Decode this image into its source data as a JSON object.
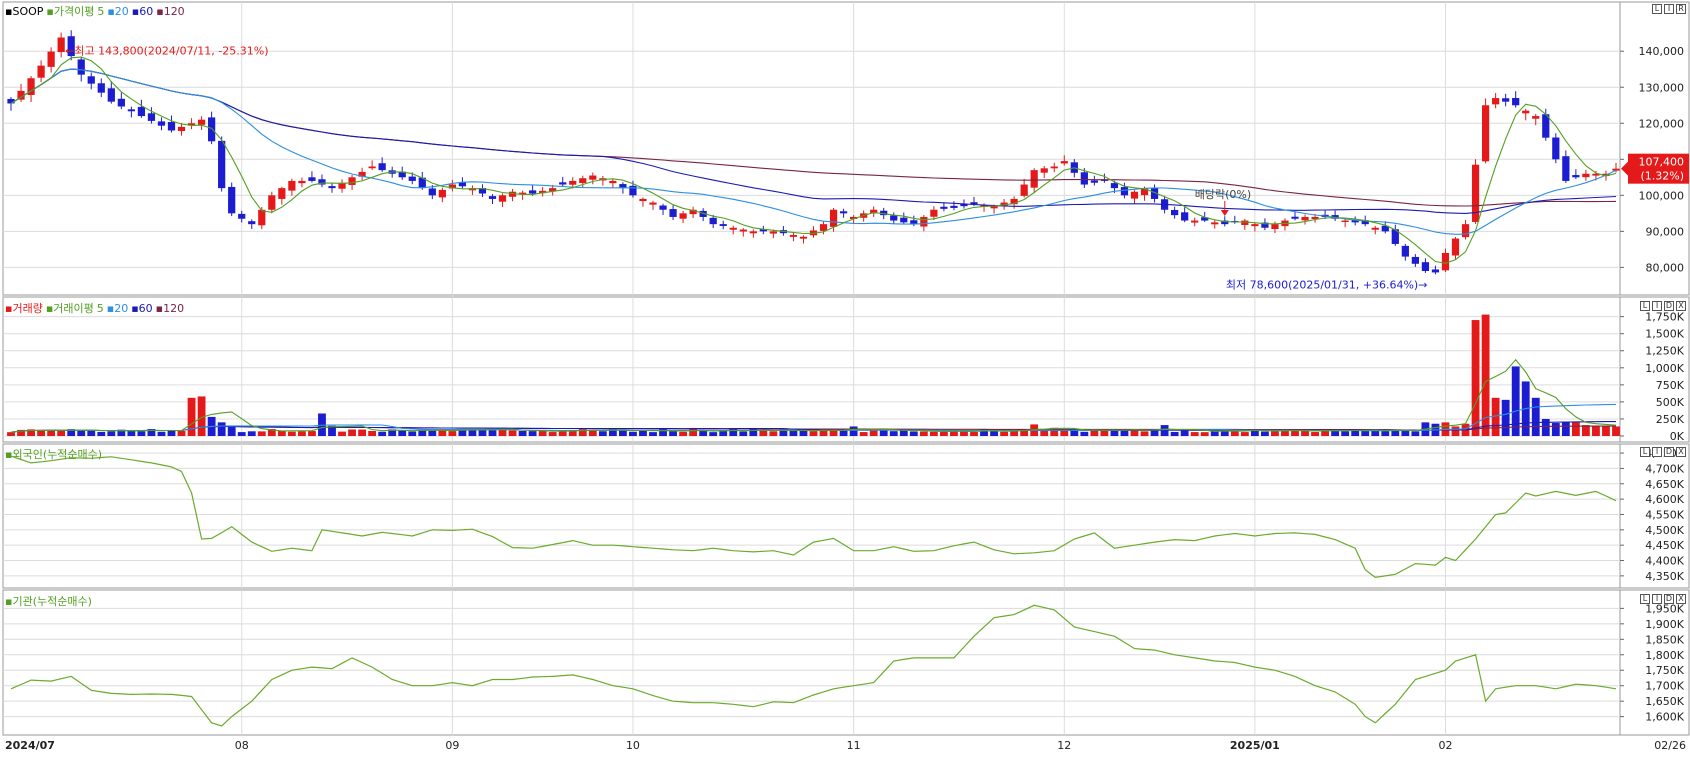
{
  "stock": {
    "name": "SOOP"
  },
  "colors": {
    "up": "#e41a1a",
    "down": "#1c1cd0",
    "ma5": "#52a022",
    "ma20": "#2d8fe0",
    "ma60": "#1b1bb4",
    "ma120": "#7a2448",
    "flow": "#6aab2c",
    "grid": "#dcdcdc",
    "frame": "#9a9a9a"
  },
  "panels": {
    "price": {
      "legend": [
        {
          "text": "▪SOOP",
          "color": "#000000"
        },
        {
          "text": "▪가격이평",
          "color": "#52a022"
        },
        {
          "text": "5",
          "color": "#52a022"
        },
        {
          "text": "▪20",
          "color": "#2d8fe0"
        },
        {
          "text": "▪60",
          "color": "#1b1bb4"
        },
        {
          "text": "▪120",
          "color": "#7a2448"
        }
      ],
      "controls": [
        "L",
        "I",
        "R"
      ]
    },
    "volume": {
      "legend": [
        {
          "text": "▪거래량",
          "color": "#e41a1a"
        },
        {
          "text": "▪거래이평",
          "color": "#52a022"
        },
        {
          "text": "5",
          "color": "#52a022"
        },
        {
          "text": "▪20",
          "color": "#2d8fe0"
        },
        {
          "text": "▪60",
          "color": "#1b1bb4"
        },
        {
          "text": "▪120",
          "color": "#7a2448"
        }
      ],
      "controls": [
        "L",
        "I",
        "D",
        "X"
      ]
    },
    "foreign": {
      "legend": [
        {
          "text": "▪외국인(누적순매수)",
          "color": "#52a022"
        }
      ],
      "controls": [
        "L",
        "I",
        "D",
        "X"
      ]
    },
    "institution": {
      "legend": [
        {
          "text": "▪기관(누적순매수)",
          "color": "#52a022"
        }
      ],
      "controls": [
        "L",
        "I",
        "D",
        "X"
      ]
    }
  },
  "chart_data": [
    {
      "type": "candlestick",
      "panel": "price",
      "ylim": [
        74000,
        152000
      ],
      "yticks": [
        80000,
        90000,
        100000,
        110000,
        120000,
        130000,
        140000
      ],
      "ytick_labels": [
        "80,000",
        "90,000",
        "100,000",
        "110,000",
        "120,000",
        "130,000",
        "140,000"
      ],
      "days": 161,
      "x_labels": [
        {
          "day": 0,
          "text": "2024/07"
        },
        {
          "day": 23,
          "text": "08"
        },
        {
          "day": 44,
          "text": "09"
        },
        {
          "day": 62,
          "text": "10"
        },
        {
          "day": 84,
          "text": "11"
        },
        {
          "day": 105,
          "text": "12"
        },
        {
          "day": 124,
          "text": "2025/01"
        },
        {
          "day": 143,
          "text": "02"
        },
        {
          "day": 160,
          "text": "02/26"
        }
      ],
      "anchors": [
        [
          0,
          125500
        ],
        [
          3,
          136000
        ],
        [
          5,
          143800
        ],
        [
          7,
          133500
        ],
        [
          10,
          126000
        ],
        [
          13,
          122000
        ],
        [
          16,
          118000
        ],
        [
          19,
          121000
        ],
        [
          20,
          115000
        ],
        [
          21,
          102000
        ],
        [
          22,
          95000
        ],
        [
          24,
          92000
        ],
        [
          26,
          100000
        ],
        [
          28,
          104000
        ],
        [
          30,
          104000
        ],
        [
          32,
          102000
        ],
        [
          34,
          105000
        ],
        [
          36,
          108000
        ],
        [
          38,
          106000
        ],
        [
          40,
          104000
        ],
        [
          42,
          100000
        ],
        [
          44,
          103000
        ],
        [
          46,
          102000
        ],
        [
          48,
          99000
        ],
        [
          50,
          101000
        ],
        [
          52,
          100500
        ],
        [
          54,
          102000
        ],
        [
          56,
          104000
        ],
        [
          58,
          105500
        ],
        [
          60,
          104000
        ],
        [
          62,
          100000
        ],
        [
          64,
          98000
        ],
        [
          66,
          94000
        ],
        [
          68,
          96000
        ],
        [
          70,
          92000
        ],
        [
          72,
          91000
        ],
        [
          74,
          90000
        ],
        [
          76,
          90000
        ],
        [
          78,
          89000
        ],
        [
          79,
          88500
        ],
        [
          81,
          92000
        ],
        [
          82,
          96000
        ],
        [
          84,
          94000
        ],
        [
          86,
          96000
        ],
        [
          88,
          93000
        ],
        [
          90,
          92000
        ],
        [
          92,
          96000
        ],
        [
          94,
          96500
        ],
        [
          96,
          97500
        ],
        [
          98,
          97000
        ],
        [
          100,
          99000
        ],
        [
          102,
          107000
        ],
        [
          104,
          108000
        ],
        [
          105,
          109500
        ],
        [
          107,
          103000
        ],
        [
          109,
          104000
        ],
        [
          111,
          100000
        ],
        [
          113,
          102000
        ],
        [
          115,
          96000
        ],
        [
          117,
          93000
        ],
        [
          119,
          93000
        ],
        [
          121,
          92000
        ],
        [
          123,
          93000
        ],
        [
          125,
          91000
        ],
        [
          127,
          93000
        ],
        [
          129,
          94000
        ],
        [
          131,
          94000
        ],
        [
          133,
          93000
        ],
        [
          135,
          92000
        ],
        [
          137,
          90000
        ],
        [
          139,
          83000
        ],
        [
          141,
          79000
        ],
        [
          142,
          78600
        ],
        [
          143,
          84000
        ],
        [
          145,
          92000
        ],
        [
          147,
          125000
        ],
        [
          148,
          127000
        ],
        [
          150,
          125000
        ],
        [
          152,
          122000
        ],
        [
          154,
          110000
        ],
        [
          155,
          104000
        ],
        [
          157,
          106000
        ],
        [
          159,
          106000
        ],
        [
          160,
          107400
        ]
      ],
      "highest": {
        "value": 143800,
        "label": "←최고 143,800(2024/07/11, -25.31%)"
      },
      "lowest": {
        "value": 78600,
        "label": "최저 78,600(2025/01/31, +36.64%)→"
      },
      "dividend": {
        "label": "배당락(0%)"
      },
      "last_price": {
        "value": 107400,
        "label": "107,400",
        "change": "(1.32%)"
      }
    },
    {
      "type": "bar",
      "panel": "volume",
      "ylim": [
        0,
        1950000
      ],
      "yticks": [
        0,
        250000,
        500000,
        750000,
        1000000,
        1250000,
        1500000,
        1750000
      ],
      "ytick_labels": [
        "0K",
        "250K",
        "500K",
        "750K",
        "1,000K",
        "1,250K",
        "1,500K",
        "1,750K"
      ],
      "base_volume": 80000,
      "spikes": [
        [
          18,
          560000
        ],
        [
          19,
          580000
        ],
        [
          20,
          280000
        ],
        [
          21,
          200000
        ],
        [
          22,
          150000
        ],
        [
          31,
          330000
        ],
        [
          32,
          150000
        ],
        [
          84,
          140000
        ],
        [
          102,
          170000
        ],
        [
          104,
          120000
        ],
        [
          115,
          160000
        ],
        [
          141,
          200000
        ],
        [
          142,
          180000
        ],
        [
          143,
          200000
        ],
        [
          144,
          140000
        ],
        [
          145,
          180000
        ],
        [
          146,
          1700000
        ],
        [
          147,
          1780000
        ],
        [
          148,
          560000
        ],
        [
          149,
          530000
        ],
        [
          150,
          1020000
        ],
        [
          151,
          800000
        ],
        [
          152,
          560000
        ],
        [
          153,
          250000
        ],
        [
          154,
          190000
        ],
        [
          155,
          200000
        ],
        [
          156,
          200000
        ],
        [
          157,
          160000
        ],
        [
          158,
          150000
        ],
        [
          159,
          140000
        ],
        [
          160,
          140000
        ]
      ]
    },
    {
      "type": "line",
      "panel": "foreign",
      "ylim": [
        4330,
        4760
      ],
      "yticks": [
        4350,
        4400,
        4450,
        4500,
        4550,
        4600,
        4650,
        4700,
        4750
      ],
      "ytick_labels": [
        "4,350K",
        "4,400K",
        "4,450K",
        "4,500K",
        "4,550K",
        "4,600K",
        "4,650K",
        "4,700K",
        "4,750K"
      ],
      "anchors": [
        [
          0,
          4740
        ],
        [
          2,
          4718
        ],
        [
          4,
          4725
        ],
        [
          6,
          4735
        ],
        [
          8,
          4733
        ],
        [
          10,
          4738
        ],
        [
          12,
          4728
        ],
        [
          14,
          4718
        ],
        [
          16,
          4705
        ],
        [
          17,
          4690
        ],
        [
          18,
          4620
        ],
        [
          19,
          4470
        ],
        [
          20,
          4472
        ],
        [
          22,
          4510
        ],
        [
          24,
          4460
        ],
        [
          26,
          4430
        ],
        [
          28,
          4440
        ],
        [
          30,
          4432
        ],
        [
          31,
          4500
        ],
        [
          33,
          4490
        ],
        [
          35,
          4480
        ],
        [
          37,
          4492
        ],
        [
          40,
          4480
        ],
        [
          42,
          4500
        ],
        [
          44,
          4498
        ],
        [
          46,
          4502
        ],
        [
          48,
          4478
        ],
        [
          50,
          4442
        ],
        [
          52,
          4440
        ],
        [
          54,
          4452
        ],
        [
          56,
          4465
        ],
        [
          58,
          4450
        ],
        [
          60,
          4450
        ],
        [
          62,
          4445
        ],
        [
          64,
          4440
        ],
        [
          66,
          4435
        ],
        [
          68,
          4432
        ],
        [
          70,
          4440
        ],
        [
          72,
          4432
        ],
        [
          74,
          4428
        ],
        [
          76,
          4432
        ],
        [
          78,
          4418
        ],
        [
          80,
          4460
        ],
        [
          82,
          4472
        ],
        [
          84,
          4432
        ],
        [
          86,
          4432
        ],
        [
          88,
          4445
        ],
        [
          90,
          4430
        ],
        [
          92,
          4432
        ],
        [
          94,
          4448
        ],
        [
          96,
          4460
        ],
        [
          98,
          4435
        ],
        [
          100,
          4422
        ],
        [
          102,
          4425
        ],
        [
          104,
          4432
        ],
        [
          106,
          4470
        ],
        [
          108,
          4490
        ],
        [
          110,
          4440
        ],
        [
          112,
          4450
        ],
        [
          114,
          4460
        ],
        [
          116,
          4468
        ],
        [
          118,
          4465
        ],
        [
          120,
          4480
        ],
        [
          122,
          4488
        ],
        [
          124,
          4480
        ],
        [
          126,
          4488
        ],
        [
          128,
          4490
        ],
        [
          130,
          4485
        ],
        [
          132,
          4468
        ],
        [
          134,
          4440
        ],
        [
          135,
          4370
        ],
        [
          136,
          4345
        ],
        [
          138,
          4355
        ],
        [
          140,
          4390
        ],
        [
          142,
          4385
        ],
        [
          143,
          4410
        ],
        [
          144,
          4400
        ],
        [
          146,
          4470
        ],
        [
          148,
          4550
        ],
        [
          149,
          4555
        ],
        [
          151,
          4620
        ],
        [
          152,
          4610
        ],
        [
          154,
          4625
        ],
        [
          156,
          4612
        ],
        [
          158,
          4625
        ],
        [
          160,
          4595
        ]
      ]
    },
    {
      "type": "line",
      "panel": "institution",
      "ylim": [
        1560,
        1990
      ],
      "yticks": [
        1600,
        1650,
        1700,
        1750,
        1800,
        1850,
        1900,
        1950
      ],
      "ytick_labels": [
        "1,600K",
        "1,650K",
        "1,700K",
        "1,750K",
        "1,800K",
        "1,850K",
        "1,900K",
        "1,950K"
      ],
      "anchors": [
        [
          0,
          1690
        ],
        [
          2,
          1718
        ],
        [
          4,
          1715
        ],
        [
          6,
          1730
        ],
        [
          8,
          1685
        ],
        [
          10,
          1675
        ],
        [
          12,
          1672
        ],
        [
          14,
          1673
        ],
        [
          16,
          1672
        ],
        [
          18,
          1665
        ],
        [
          20,
          1580
        ],
        [
          21,
          1570
        ],
        [
          22,
          1600
        ],
        [
          24,
          1650
        ],
        [
          26,
          1720
        ],
        [
          28,
          1750
        ],
        [
          30,
          1760
        ],
        [
          32,
          1755
        ],
        [
          34,
          1790
        ],
        [
          36,
          1760
        ],
        [
          38,
          1720
        ],
        [
          40,
          1700
        ],
        [
          42,
          1700
        ],
        [
          44,
          1710
        ],
        [
          46,
          1700
        ],
        [
          48,
          1720
        ],
        [
          50,
          1720
        ],
        [
          52,
          1728
        ],
        [
          54,
          1730
        ],
        [
          56,
          1735
        ],
        [
          58,
          1720
        ],
        [
          60,
          1700
        ],
        [
          62,
          1690
        ],
        [
          64,
          1668
        ],
        [
          66,
          1650
        ],
        [
          68,
          1645
        ],
        [
          70,
          1645
        ],
        [
          72,
          1640
        ],
        [
          74,
          1632
        ],
        [
          76,
          1648
        ],
        [
          78,
          1645
        ],
        [
          80,
          1670
        ],
        [
          82,
          1690
        ],
        [
          84,
          1700
        ],
        [
          86,
          1710
        ],
        [
          88,
          1780
        ],
        [
          90,
          1790
        ],
        [
          92,
          1790
        ],
        [
          94,
          1790
        ],
        [
          96,
          1860
        ],
        [
          98,
          1920
        ],
        [
          100,
          1930
        ],
        [
          102,
          1960
        ],
        [
          104,
          1945
        ],
        [
          106,
          1890
        ],
        [
          108,
          1875
        ],
        [
          110,
          1860
        ],
        [
          112,
          1820
        ],
        [
          114,
          1815
        ],
        [
          116,
          1800
        ],
        [
          118,
          1790
        ],
        [
          120,
          1780
        ],
        [
          122,
          1775
        ],
        [
          124,
          1760
        ],
        [
          126,
          1750
        ],
        [
          128,
          1730
        ],
        [
          130,
          1700
        ],
        [
          132,
          1680
        ],
        [
          134,
          1640
        ],
        [
          135,
          1600
        ],
        [
          136,
          1580
        ],
        [
          138,
          1640
        ],
        [
          140,
          1720
        ],
        [
          142,
          1740
        ],
        [
          143,
          1750
        ],
        [
          144,
          1780
        ],
        [
          146,
          1800
        ],
        [
          147,
          1650
        ],
        [
          148,
          1690
        ],
        [
          150,
          1700
        ],
        [
          152,
          1700
        ],
        [
          154,
          1690
        ],
        [
          156,
          1705
        ],
        [
          158,
          1700
        ],
        [
          160,
          1690
        ]
      ]
    }
  ]
}
